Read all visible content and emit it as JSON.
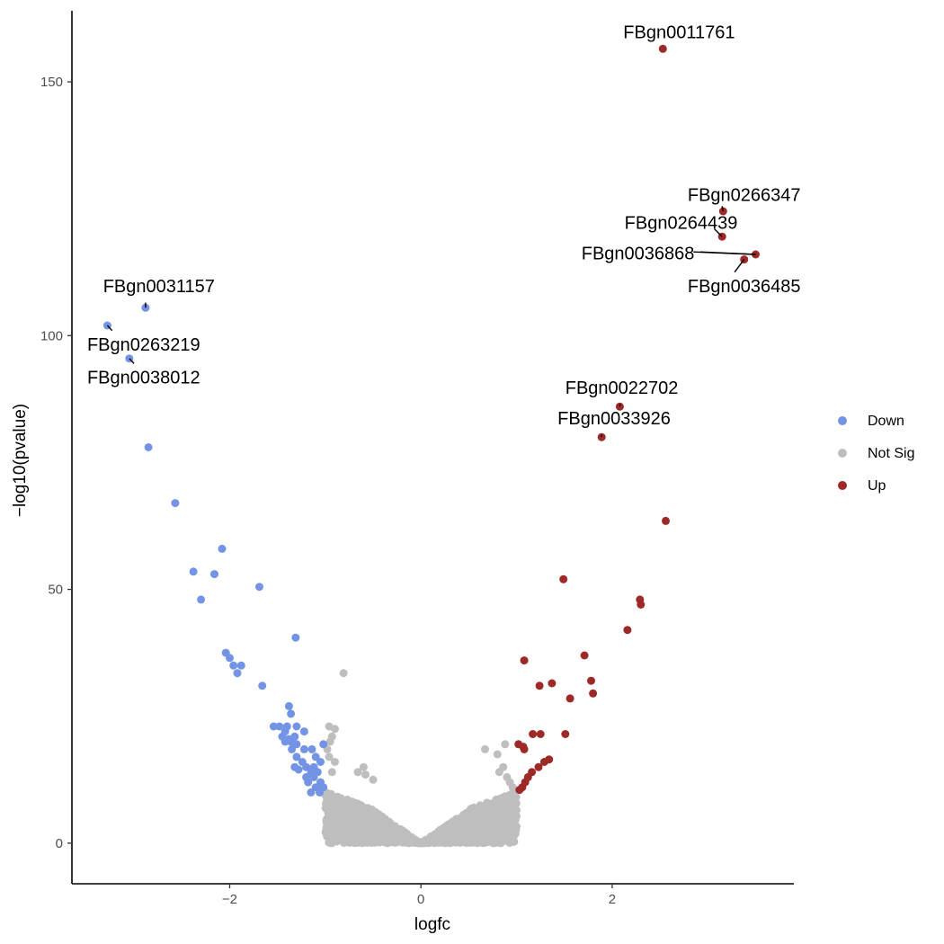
{
  "chart_data": {
    "type": "scatter",
    "title": "",
    "xlabel": "logfc",
    "ylabel": "−log10(pvalue)",
    "xlim": [
      -3.65,
      3.9
    ],
    "ylim": [
      -8,
      164
    ],
    "x_ticks": [
      {
        "value": -2,
        "label": "−2"
      },
      {
        "value": 0,
        "label": "0"
      },
      {
        "value": 2,
        "label": "2"
      }
    ],
    "y_ticks": [
      {
        "value": 0,
        "label": "0"
      },
      {
        "value": 50,
        "label": "50"
      },
      {
        "value": 100,
        "label": "100"
      },
      {
        "value": 150,
        "label": "150"
      }
    ],
    "grid": false,
    "legend_position": "right",
    "series": [
      {
        "name": "Down",
        "color": "#7394E5",
        "points": [
          [
            -3.28,
            102
          ],
          [
            -2.88,
            105.5
          ],
          [
            -3.05,
            95.5
          ],
          [
            -2.85,
            78
          ],
          [
            -2.57,
            67
          ],
          [
            -2.08,
            58
          ],
          [
            -2.38,
            53.5
          ],
          [
            -2.16,
            53
          ],
          [
            -1.69,
            50.5
          ],
          [
            -2.3,
            48
          ],
          [
            -1.31,
            40.5
          ],
          [
            -2.04,
            37.5
          ],
          [
            -2.0,
            36.5
          ],
          [
            -1.96,
            35
          ],
          [
            -1.88,
            35
          ],
          [
            -1.92,
            33.5
          ],
          [
            -1.66,
            31
          ],
          [
            -1.38,
            27
          ],
          [
            -1.36,
            25.5
          ],
          [
            -1.54,
            23
          ],
          [
            -1.48,
            23
          ],
          [
            -1.4,
            23
          ],
          [
            -1.3,
            23
          ],
          [
            -1.42,
            22
          ],
          [
            -1.45,
            21
          ],
          [
            -1.38,
            20.5
          ],
          [
            -1.32,
            21
          ],
          [
            -1.22,
            22
          ],
          [
            -1.42,
            20
          ],
          [
            -1.36,
            20
          ],
          [
            -1.3,
            19.5
          ],
          [
            -1.02,
            19.5
          ],
          [
            -1.35,
            18.5
          ],
          [
            -1.22,
            18.5
          ],
          [
            -1.14,
            18.5
          ],
          [
            -1.3,
            17
          ],
          [
            -1.1,
            17
          ],
          [
            -1.24,
            16
          ],
          [
            -1.05,
            16
          ],
          [
            -1.32,
            15
          ],
          [
            -1.2,
            15
          ],
          [
            -1.12,
            15
          ],
          [
            -1.28,
            14.5
          ],
          [
            -1.15,
            14
          ],
          [
            -1.08,
            14
          ],
          [
            -1.2,
            13
          ],
          [
            -1.12,
            13
          ],
          [
            -1.18,
            12
          ],
          [
            -1.05,
            12
          ],
          [
            -1.1,
            11
          ],
          [
            -1.02,
            11
          ],
          [
            -1.15,
            10
          ],
          [
            -1.06,
            10
          ]
        ]
      },
      {
        "name": "Not Sig",
        "color": "#BEBEBE",
        "points": []
      },
      {
        "name": "Up",
        "color": "#9E2A28",
        "points": [
          [
            2.53,
            156.5
          ],
          [
            3.16,
            124.5
          ],
          [
            3.15,
            119.5
          ],
          [
            3.5,
            116
          ],
          [
            3.38,
            115
          ],
          [
            2.08,
            86
          ],
          [
            1.89,
            80
          ],
          [
            2.56,
            63.5
          ],
          [
            1.49,
            52
          ],
          [
            2.29,
            48
          ],
          [
            2.3,
            47
          ],
          [
            2.16,
            42
          ],
          [
            1.71,
            37
          ],
          [
            1.08,
            36
          ],
          [
            1.78,
            32
          ],
          [
            1.37,
            31.5
          ],
          [
            1.24,
            31
          ],
          [
            1.8,
            29.5
          ],
          [
            1.56,
            28.5
          ],
          [
            1.02,
            19.5
          ],
          [
            1.07,
            19
          ],
          [
            1.17,
            21.5
          ],
          [
            1.25,
            21.5
          ],
          [
            1.51,
            21.5
          ],
          [
            1.08,
            18.5
          ],
          [
            1.34,
            16.5
          ],
          [
            1.29,
            16
          ],
          [
            1.23,
            15
          ],
          [
            1.16,
            14
          ],
          [
            1.12,
            13
          ],
          [
            1.09,
            12
          ],
          [
            1.06,
            11
          ],
          [
            1.03,
            10.5
          ]
        ]
      }
    ],
    "not_sig_extra": [
      [
        -0.81,
        33.5
      ],
      [
        -0.96,
        23
      ],
      [
        -0.9,
        22.5
      ],
      [
        -0.93,
        21
      ],
      [
        -0.95,
        20
      ],
      [
        -0.98,
        18.5
      ],
      [
        -0.96,
        17
      ],
      [
        -0.9,
        16
      ],
      [
        -0.6,
        15
      ],
      [
        -0.66,
        14
      ],
      [
        -0.58,
        13.5
      ],
      [
        -0.93,
        14
      ],
      [
        -0.5,
        12.5
      ],
      [
        0.67,
        18.5
      ],
      [
        0.88,
        19.5
      ],
      [
        0.8,
        17.5
      ],
      [
        0.86,
        15
      ],
      [
        0.82,
        14
      ],
      [
        0.9,
        13
      ],
      [
        0.93,
        12
      ],
      [
        0.96,
        11
      ]
    ],
    "labels": [
      {
        "text": "FBgn0011761",
        "x": 2.53,
        "y": 156.5,
        "lx": 2.7,
        "ly": 159.5,
        "anchor": "middle",
        "tx": 2.53,
        "ty": 156.5
      },
      {
        "text": "FBgn0266347",
        "x": 3.16,
        "y": 124.5,
        "lx": 3.38,
        "ly": 127.5,
        "anchor": "middle",
        "tx": 3.15,
        "ty": 125.5
      },
      {
        "text": "FBgn0264439",
        "x": 3.15,
        "y": 119.5,
        "lx": 2.72,
        "ly": 122,
        "anchor": "middle",
        "tx": 3.07,
        "ty": 121
      },
      {
        "text": "FBgn0036868",
        "x": 3.5,
        "y": 116,
        "lx": 2.27,
        "ly": 116,
        "anchor": "middle",
        "tx": 2.85,
        "ty": 116.5
      },
      {
        "text": "FBgn0036485",
        "x": 3.38,
        "y": 115,
        "lx": 3.38,
        "ly": 109.5,
        "anchor": "middle",
        "tx": 3.28,
        "ty": 112.5
      },
      {
        "text": "FBgn0031157",
        "x": -2.88,
        "y": 105.5,
        "lx": -2.74,
        "ly": 109.5,
        "anchor": "middle",
        "tx": -2.88,
        "ty": 106.5
      },
      {
        "text": "FBgn0263219",
        "x": -3.28,
        "y": 102,
        "lx": -2.9,
        "ly": 98,
        "anchor": "middle",
        "tx": -3.23,
        "ty": 101
      },
      {
        "text": "FBgn0038012",
        "x": -3.05,
        "y": 95.5,
        "lx": -2.9,
        "ly": 91.5,
        "anchor": "middle",
        "tx": -3.0,
        "ty": 94.5
      },
      {
        "text": "FBgn0022702",
        "x": 2.08,
        "y": 86,
        "lx": 2.1,
        "ly": 89.5,
        "anchor": "middle",
        "tx": 2.08,
        "ty": 86.5
      },
      {
        "text": "FBgn0033926",
        "x": 1.89,
        "y": 80,
        "lx": 2.02,
        "ly": 83.5,
        "anchor": "middle",
        "tx": 1.89,
        "ty": 80.5
      }
    ]
  },
  "legend": {
    "items": [
      {
        "label": "Down",
        "color": "#7394E5"
      },
      {
        "label": "Not Sig",
        "color": "#BEBEBE"
      },
      {
        "label": "Up",
        "color": "#9E2A28"
      }
    ]
  }
}
